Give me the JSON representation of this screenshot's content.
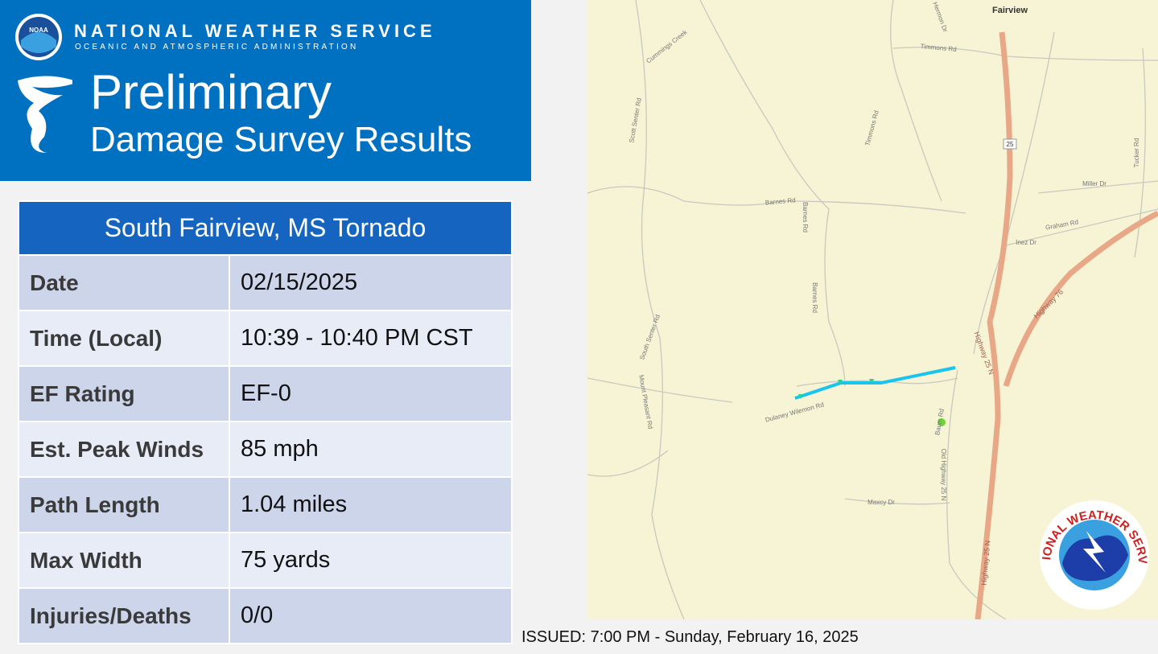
{
  "header": {
    "logo": "NOAA",
    "agency": "NATIONAL WEATHER SERVICE",
    "subagency": "OCEANIC AND ATMOSPHERIC ADMINISTRATION",
    "title": "Preliminary",
    "subtitle": "Damage Survey Results"
  },
  "table": {
    "title": "South Fairview, MS Tornado",
    "rows": [
      [
        "Date",
        "02/15/2025"
      ],
      [
        "Time (Local)",
        "10:39 - 10:40 PM CST"
      ],
      [
        "EF Rating",
        "EF-0"
      ],
      [
        "Est. Peak Winds",
        "85 mph"
      ],
      [
        "Path Length",
        "1.04 miles"
      ],
      [
        "Max Width",
        "75 yards"
      ],
      [
        "Injuries/Deaths",
        "0/0"
      ]
    ]
  },
  "map": {
    "labels": [
      "Fairview",
      "Timmons Rd",
      "Hermon Dr",
      "Scott Senter Rd",
      "Timmons Rd",
      "Barnes Rd",
      "Barnes Rd",
      "Miller Dr",
      "Graham Rd",
      "Inez Dr",
      "Tucker Rd",
      "Highway 76",
      "Highway 25 N",
      "South Senter Rd",
      "Barnes Rd",
      "Dulaney Wilemon Rd",
      "Mount Pleasant Rd",
      "Baum Rd",
      "Old Highway 25 N",
      "Maxcy Dr",
      "Highway 25 N",
      "25",
      "Cummings Creek"
    ],
    "seal": "NATIONAL WEATHER SERVICE"
  },
  "issued": "ISSUED: 7:00 PM - Sunday, February 16, 2025"
}
